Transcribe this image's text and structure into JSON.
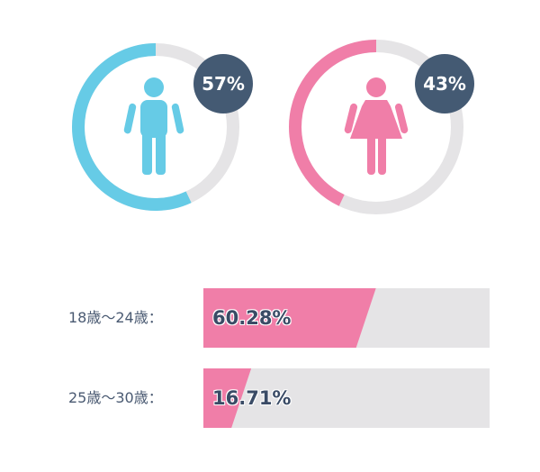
{
  "colors": {
    "male": "#66cbe6",
    "female": "#f07ea8",
    "track": "#e5e4e6",
    "badge": "#445a73",
    "label": "#4a5a72"
  },
  "chart_data": [
    {
      "type": "pie",
      "series": [
        {
          "name": "",
          "icon": "male-person-icon",
          "value": 57,
          "label": "57%"
        },
        {
          "name": "",
          "icon": "female-person-icon",
          "value": 43,
          "label": "43%"
        }
      ]
    },
    {
      "type": "bar",
      "categories": [
        "18歳～24歳：",
        "25歳～30歳："
      ],
      "values": [
        60.28,
        16.71
      ],
      "value_labels": [
        "60.28%",
        "16.71%"
      ],
      "ylim": [
        0,
        100
      ]
    }
  ]
}
